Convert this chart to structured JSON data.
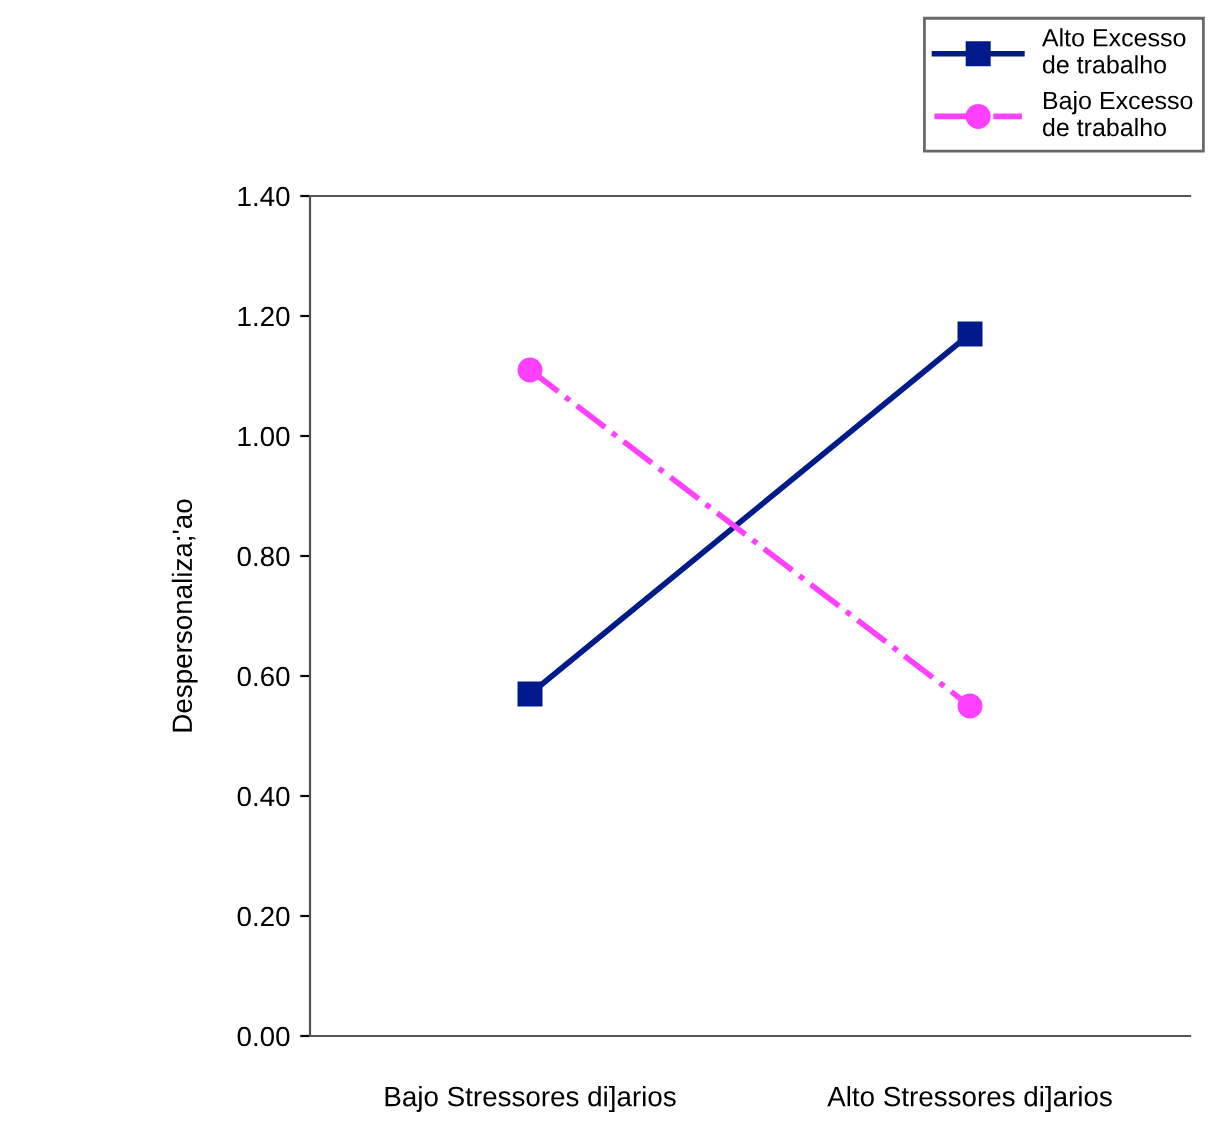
{
  "chart_data": {
    "type": "line",
    "ylabel": "Despersonaliza;'ao",
    "categories": [
      "Bajo Stressores di]arios",
      "Alto Stressores di]arios"
    ],
    "series": [
      {
        "name": "Alto Excesso de trabalho",
        "color": "#001a8c",
        "values": [
          0.57,
          1.17
        ],
        "marker": "square",
        "line_style": "solid"
      },
      {
        "name": "Bajo Excesso de trabalho",
        "color": "#ff40ff",
        "values": [
          1.11,
          0.55
        ],
        "marker": "circle",
        "line_style": "dashdot"
      }
    ],
    "ylim": [
      0,
      1.4
    ],
    "yticks": [
      {
        "value": 0,
        "label": "0.00"
      },
      {
        "value": 0.2,
        "label": "0.20"
      },
      {
        "value": 0.4,
        "label": "0.40"
      },
      {
        "value": 0.6,
        "label": "0.60"
      },
      {
        "value": 0.8,
        "label": "0.80"
      },
      {
        "value": 1.0,
        "label": "1.00"
      },
      {
        "value": 1.2,
        "label": "1.20"
      },
      {
        "value": 1.4,
        "label": "1.40"
      }
    ],
    "grid": false,
    "legend": "top right"
  }
}
